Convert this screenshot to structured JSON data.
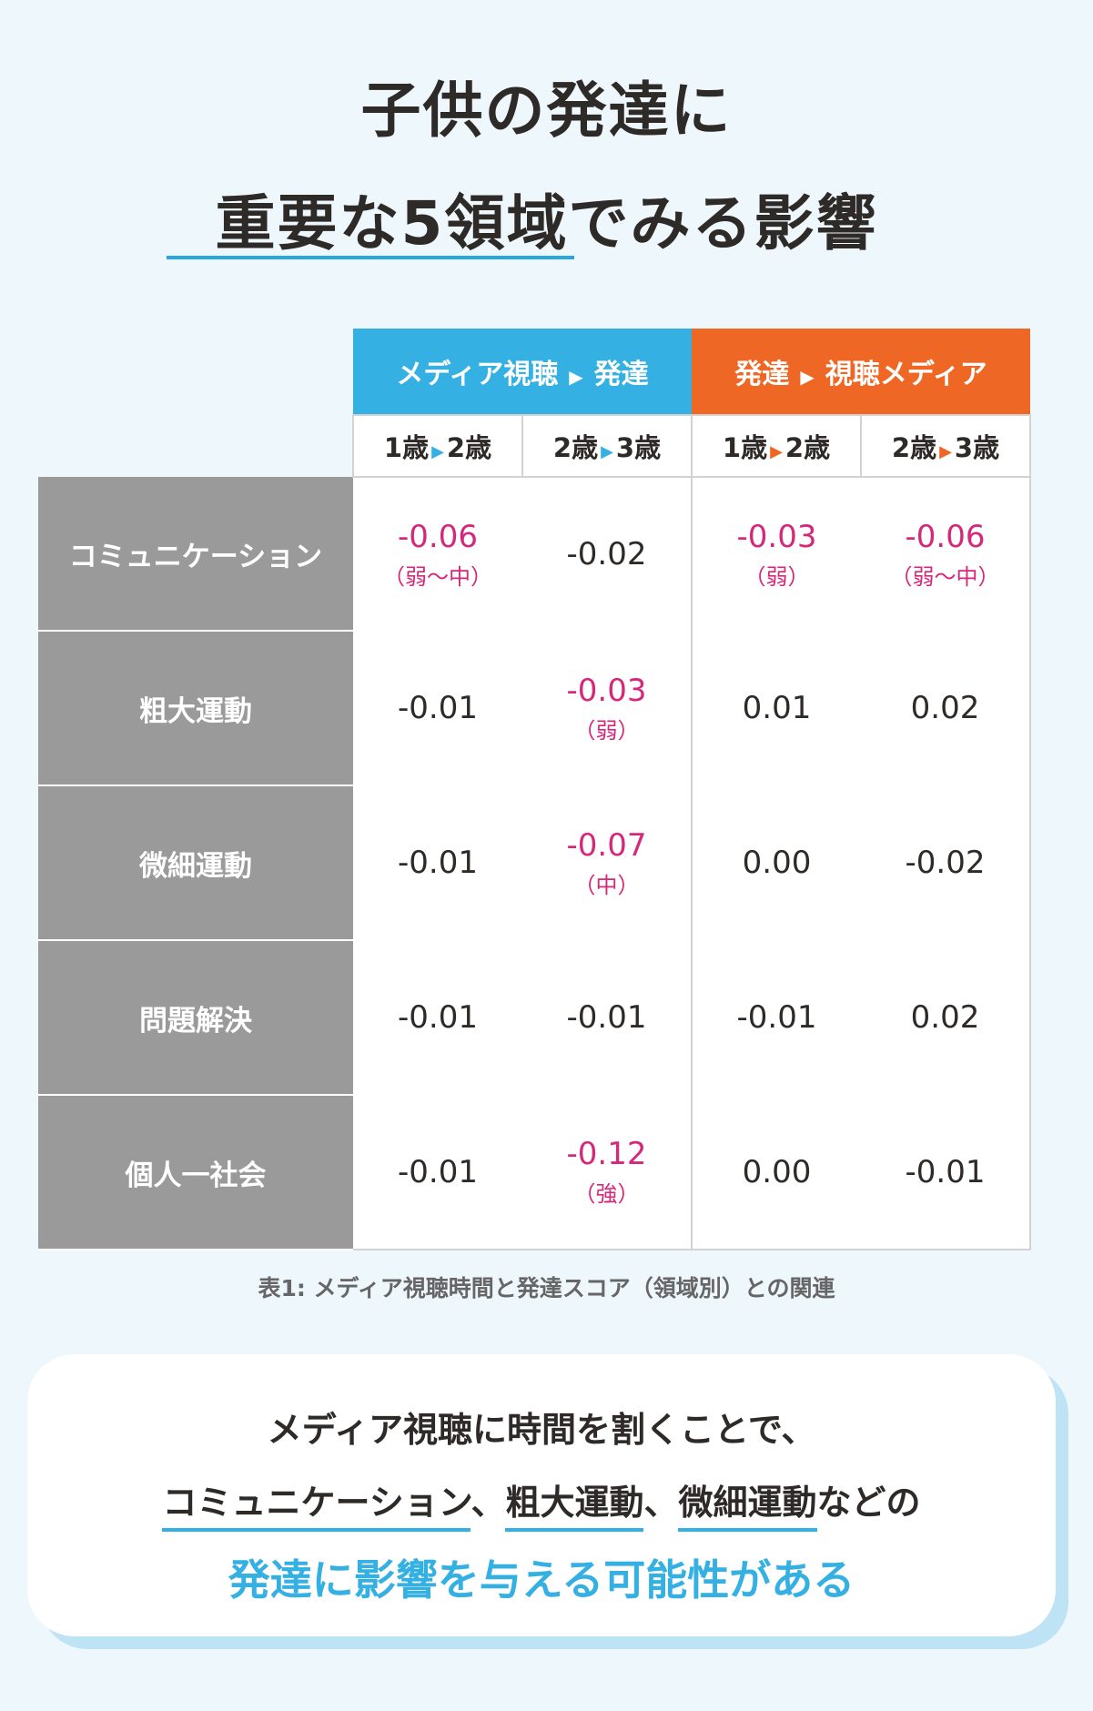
{
  "title": {
    "line1": "子供の発達に",
    "line2": "重要な5領域でみる影響",
    "underline_color": "#29a8de"
  },
  "table": {
    "group_headers": [
      {
        "from": "メディア視聴",
        "to": "発達",
        "color": "#35b0e2"
      },
      {
        "from": "発達",
        "to": "視聴メディア",
        "color": "#ee6724"
      }
    ],
    "arrow_glyph": "▶",
    "age_headers": [
      {
        "from": "1歳",
        "to": "2歳"
      },
      {
        "from": "2歳",
        "to": "3歳"
      },
      {
        "from": "1歳",
        "to": "2歳"
      },
      {
        "from": "2歳",
        "to": "3歳"
      }
    ],
    "rows": [
      {
        "label": "コミュニケーション",
        "cells": [
          {
            "value": "-0.06",
            "level": "（弱～中）"
          },
          {
            "value": "-0.02",
            "level": ""
          },
          {
            "value": "-0.03",
            "level": "（弱）"
          },
          {
            "value": "-0.06",
            "level": "（弱～中）"
          }
        ]
      },
      {
        "label": "粗大運動",
        "cells": [
          {
            "value": "-0.01",
            "level": ""
          },
          {
            "value": "-0.03",
            "level": "（弱）"
          },
          {
            "value": "0.01",
            "level": ""
          },
          {
            "value": "0.02",
            "level": ""
          }
        ]
      },
      {
        "label": "微細運動",
        "cells": [
          {
            "value": "-0.01",
            "level": ""
          },
          {
            "value": "-0.07",
            "level": "（中）"
          },
          {
            "value": "0.00",
            "level": ""
          },
          {
            "value": "-0.02",
            "level": ""
          }
        ]
      },
      {
        "label": "問題解決",
        "cells": [
          {
            "value": "-0.01",
            "level": ""
          },
          {
            "value": "-0.01",
            "level": ""
          },
          {
            "value": "-0.01",
            "level": ""
          },
          {
            "value": "0.02",
            "level": ""
          }
        ]
      },
      {
        "label": "個人一社会",
        "cells": [
          {
            "value": "-0.01",
            "level": ""
          },
          {
            "value": "-0.12",
            "level": "（強）"
          },
          {
            "value": "0.00",
            "level": ""
          },
          {
            "value": "-0.01",
            "level": ""
          }
        ]
      }
    ],
    "highlight_color": "#d6287a"
  },
  "caption": "表1: メディア視聴時間と発達スコア（領域別）との関連",
  "summary": {
    "line1": "メディア視聴に時間を割くことで、",
    "line2_parts": [
      {
        "text": "コミュニケーション",
        "underline": true
      },
      {
        "text": "、",
        "underline": false
      },
      {
        "text": "粗大運動",
        "underline": true
      },
      {
        "text": "、",
        "underline": false
      },
      {
        "text": "微細運動",
        "underline": true
      },
      {
        "text": "などの",
        "underline": false
      }
    ],
    "line3": "発達に影響を与える可能性がある",
    "accent_color": "#35b0e2"
  }
}
